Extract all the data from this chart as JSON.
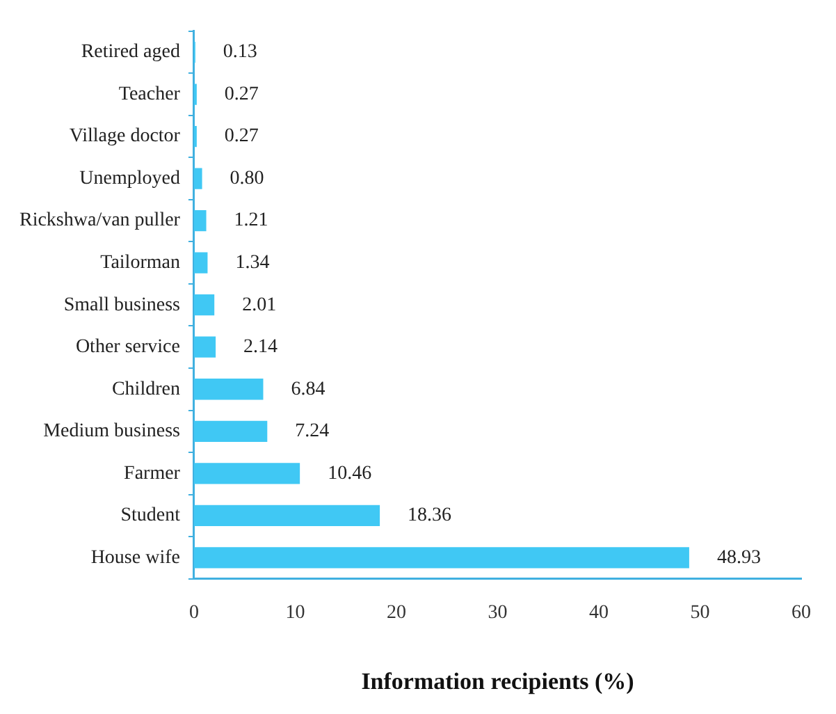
{
  "chart_data": {
    "type": "bar",
    "orientation": "horizontal",
    "xlabel": "Information recipients (%)",
    "categories": [
      "Retired aged",
      "Teacher",
      "Village doctor",
      "Unemployed",
      "Rickshwa/van puller",
      "Tailorman",
      "Small business",
      "Other service",
      "Children",
      "Medium business",
      "Farmer",
      "Student",
      "House wife"
    ],
    "values": [
      0.13,
      0.27,
      0.27,
      0.8,
      1.21,
      1.34,
      2.01,
      2.14,
      6.84,
      7.24,
      10.46,
      18.36,
      48.93
    ],
    "value_labels": [
      "0.13",
      "0.27",
      "0.27",
      "0.80",
      "1.21",
      "1.34",
      "2.01",
      "2.14",
      "6.84",
      "7.24",
      "10.46",
      "18.36",
      "48.93"
    ],
    "color": "#40c8f4",
    "xlim": [
      0,
      60
    ],
    "xticks": [
      0,
      10,
      20,
      30,
      40,
      50,
      60
    ],
    "grid": false,
    "legend": false
  }
}
